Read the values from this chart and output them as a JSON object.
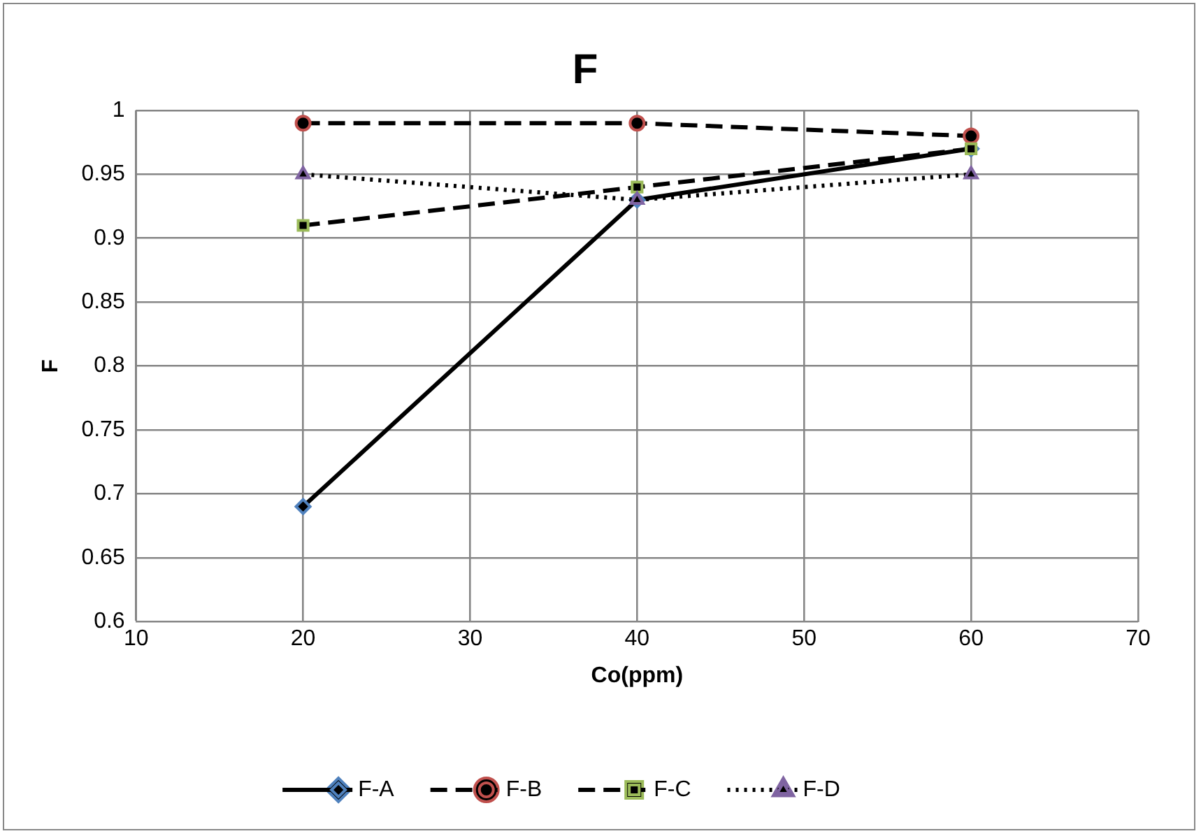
{
  "chart_data": {
    "type": "line",
    "title": "F",
    "xlabel": "Co(ppm)",
    "ylabel": "F",
    "x": [
      20,
      40,
      60
    ],
    "series": [
      {
        "name": "F-A",
        "color": "#4f81bd",
        "values": [
          0.69,
          0.93,
          0.97
        ],
        "marker": "diamond",
        "line_style": "solid"
      },
      {
        "name": "F-B",
        "color": "#c0504d",
        "values": [
          0.99,
          0.99,
          0.98
        ],
        "marker": "circle",
        "line_style": "dashed"
      },
      {
        "name": "F-C",
        "color": "#9bbb59",
        "values": [
          0.91,
          0.94,
          0.97
        ],
        "marker": "square",
        "line_style": "dashed"
      },
      {
        "name": "F-D",
        "color": "#8064a2",
        "values": [
          0.95,
          0.93,
          0.95
        ],
        "marker": "triangle",
        "line_style": "dotted"
      }
    ],
    "xlim": [
      10,
      70
    ],
    "xticks": [
      10,
      20,
      30,
      40,
      50,
      60,
      70
    ],
    "ylim": [
      0.6,
      1
    ],
    "yticks": [
      0.6,
      0.65,
      0.7,
      0.75,
      0.8,
      0.85,
      0.9,
      0.95,
      1
    ],
    "grid": true,
    "legend": "bottom"
  }
}
